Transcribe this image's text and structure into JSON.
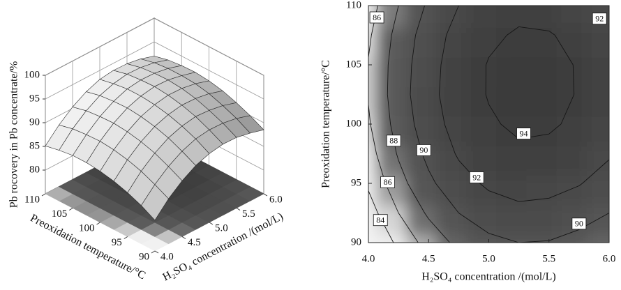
{
  "chart_data": [
    {
      "type": "surface",
      "z_label": "Pb rocovery in Pb concentrate/%",
      "x_label": "H₂SO₄ concentration /(mol/L)",
      "y_label": "Preoxidation temperature/°C",
      "x": [
        4,
        4.25,
        4.5,
        4.75,
        5,
        5.25,
        5.5,
        5.75,
        6
      ],
      "y": [
        90,
        92.5,
        95,
        97.5,
        100,
        102.5,
        105,
        107.5,
        110
      ],
      "z": [
        [
          81.5,
          84.5,
          86.8,
          88.5,
          89.5,
          90.0,
          89.9,
          89.3,
          88.5
        ],
        [
          83.1,
          86.0,
          88.3,
          90.0,
          91.1,
          91.5,
          91.4,
          90.9,
          90.0
        ],
        [
          84.3,
          87.3,
          89.6,
          91.3,
          92.3,
          92.8,
          92.6,
          92.1,
          91.2
        ],
        [
          85.2,
          88.2,
          90.5,
          92.2,
          93.2,
          93.7,
          93.6,
          93.1,
          92.2
        ],
        [
          85.8,
          88.8,
          91.1,
          92.8,
          93.8,
          94.3,
          94.2,
          93.7,
          92.8
        ],
        [
          86.1,
          89.1,
          91.4,
          93.1,
          94.1,
          94.6,
          94.5,
          93.9,
          93.1
        ],
        [
          86.1,
          89.0,
          91.3,
          93.0,
          94.1,
          94.5,
          94.4,
          93.9,
          93.0
        ],
        [
          85.7,
          88.7,
          91.0,
          92.7,
          93.7,
          94.2,
          94.1,
          93.6,
          92.7
        ],
        [
          85.1,
          88.0,
          90.3,
          92.0,
          93.1,
          93.5,
          93.4,
          92.9,
          92.0
        ]
      ],
      "xlim": [
        4,
        6
      ],
      "ylim": [
        90,
        110
      ],
      "zlim": [
        75,
        100
      ],
      "xticks": [
        {
          "value": 4,
          "label": "4.0"
        },
        4.5,
        {
          "value": 5,
          "label": "5.0"
        },
        5.5,
        {
          "value": 6,
          "label": "6.0"
        }
      ],
      "yticks": [
        90,
        95,
        100,
        105,
        110
      ],
      "zticks": [
        80,
        85,
        90,
        95,
        100
      ],
      "grid": true
    },
    {
      "type": "contour",
      "x_label": "H₂SO₄ concentration /(mol/L)",
      "y_label": "Preoxidation temperature/°C",
      "x": [
        4,
        4.25,
        4.5,
        4.75,
        5,
        5.25,
        5.5,
        5.75,
        6
      ],
      "y": [
        90,
        92.5,
        95,
        97.5,
        100,
        102.5,
        105,
        107.5,
        110
      ],
      "z": [
        [
          81.5,
          84.5,
          86.8,
          88.5,
          89.5,
          90.0,
          89.9,
          89.3,
          88.5
        ],
        [
          83.1,
          86.0,
          88.3,
          90.0,
          91.1,
          91.5,
          91.4,
          90.9,
          90.0
        ],
        [
          84.3,
          87.3,
          89.6,
          91.3,
          92.3,
          92.8,
          92.6,
          92.1,
          91.2
        ],
        [
          85.2,
          88.2,
          90.5,
          92.2,
          93.2,
          93.7,
          93.6,
          93.1,
          92.2
        ],
        [
          85.8,
          88.8,
          91.1,
          92.8,
          93.8,
          94.3,
          94.2,
          93.7,
          92.8
        ],
        [
          86.1,
          89.1,
          91.4,
          93.1,
          94.1,
          94.6,
          94.5,
          93.9,
          93.1
        ],
        [
          86.1,
          89.0,
          91.3,
          93.0,
          94.1,
          94.5,
          94.4,
          93.9,
          93.0
        ],
        [
          85.7,
          88.7,
          91.0,
          92.7,
          93.7,
          94.2,
          94.1,
          93.6,
          92.7
        ],
        [
          85.1,
          88.0,
          90.3,
          92.0,
          93.1,
          93.5,
          93.4,
          92.9,
          92.0
        ]
      ],
      "xlim": [
        4,
        6
      ],
      "ylim": [
        90,
        110
      ],
      "xticks": [
        {
          "value": 4,
          "label": "4.0"
        },
        4.5,
        {
          "value": 5,
          "label": "5.0"
        },
        5.5,
        {
          "value": 6,
          "label": "6.0"
        }
      ],
      "yticks": [
        90,
        95,
        100,
        105,
        110
      ],
      "levels": [
        84,
        86,
        88,
        90,
        92,
        94
      ],
      "contour_labels": [
        {
          "value": 86,
          "x": 4.07,
          "y": 109
        },
        {
          "value": 92,
          "x": 5.92,
          "y": 108.9
        },
        {
          "value": 94,
          "x": 5.29,
          "y": 99.2
        },
        {
          "value": 88,
          "x": 4.21,
          "y": 98.6
        },
        {
          "value": 90,
          "x": 4.46,
          "y": 97.8
        },
        {
          "value": 92,
          "x": 4.9,
          "y": 95.5
        },
        {
          "value": 86,
          "x": 4.16,
          "y": 95.1
        },
        {
          "value": 84,
          "x": 4.1,
          "y": 91.9
        },
        {
          "value": 90,
          "x": 5.75,
          "y": 91.6
        }
      ]
    }
  ]
}
